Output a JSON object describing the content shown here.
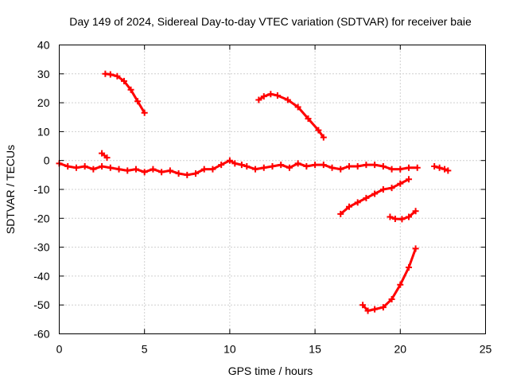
{
  "chart_data": {
    "type": "scatter",
    "title": "Day 149 of 2024, Sidereal Day-to-day VTEC variation (SDTVAR) for receiver baie",
    "xlabel": "GPS time / hours",
    "ylabel": "SDTVAR / TECUs",
    "xlim": [
      0,
      25
    ],
    "ylim": [
      -60,
      40
    ],
    "xticks": [
      0,
      5,
      10,
      15,
      20,
      25
    ],
    "yticks": [
      -60,
      -50,
      -40,
      -30,
      -20,
      -10,
      0,
      10,
      20,
      30,
      40
    ],
    "grid": true,
    "marker": "plus",
    "color": "#ff0000",
    "series": [
      {
        "name": "arc-main",
        "points": [
          [
            0.0,
            -1.0
          ],
          [
            0.5,
            -2.0
          ],
          [
            1.0,
            -2.5
          ],
          [
            1.5,
            -2.0
          ],
          [
            2.0,
            -3.0
          ],
          [
            2.5,
            -2.0
          ],
          [
            3.0,
            -2.5
          ],
          [
            3.5,
            -3.0
          ],
          [
            4.0,
            -3.5
          ],
          [
            4.5,
            -3.0
          ],
          [
            5.0,
            -4.0
          ],
          [
            5.5,
            -3.0
          ],
          [
            6.0,
            -4.0
          ],
          [
            6.5,
            -3.5
          ],
          [
            7.0,
            -4.5
          ],
          [
            7.5,
            -5.0
          ],
          [
            8.0,
            -4.5
          ],
          [
            8.5,
            -3.0
          ],
          [
            9.0,
            -3.0
          ],
          [
            9.5,
            -1.5
          ],
          [
            10.0,
            0.0
          ],
          [
            10.3,
            -1.0
          ],
          [
            10.7,
            -1.5
          ],
          [
            11.0,
            -2.0
          ],
          [
            11.5,
            -3.0
          ],
          [
            12.0,
            -2.5
          ],
          [
            12.5,
            -2.0
          ],
          [
            13.0,
            -1.5
          ],
          [
            13.5,
            -2.5
          ],
          [
            14.0,
            -1.0
          ],
          [
            14.5,
            -2.0
          ],
          [
            15.0,
            -1.5
          ],
          [
            15.5,
            -1.5
          ],
          [
            16.0,
            -2.5
          ],
          [
            16.5,
            -3.0
          ],
          [
            17.0,
            -2.0
          ],
          [
            17.5,
            -2.0
          ],
          [
            18.0,
            -1.5
          ],
          [
            18.5,
            -1.5
          ],
          [
            19.0,
            -2.0
          ],
          [
            19.5,
            -3.0
          ],
          [
            20.0,
            -3.0
          ],
          [
            20.5,
            -2.5
          ],
          [
            21.0,
            -2.5
          ]
        ]
      },
      {
        "name": "arc-1",
        "points": [
          [
            2.7,
            30.0
          ],
          [
            3.0,
            29.8
          ],
          [
            3.4,
            29.2
          ],
          [
            3.8,
            27.5
          ],
          [
            4.2,
            24.5
          ],
          [
            4.6,
            20.5
          ],
          [
            5.0,
            16.5
          ]
        ]
      },
      {
        "name": "arc-2",
        "points": [
          [
            11.7,
            21.0
          ],
          [
            12.0,
            22.2
          ],
          [
            12.4,
            23.0
          ],
          [
            12.8,
            22.5
          ],
          [
            13.4,
            21.0
          ],
          [
            14.0,
            18.5
          ],
          [
            14.6,
            14.5
          ],
          [
            15.2,
            10.5
          ],
          [
            15.5,
            8.0
          ]
        ]
      },
      {
        "name": "arc-3",
        "points": [
          [
            16.5,
            -18.5
          ],
          [
            17.0,
            -16.0
          ],
          [
            17.5,
            -14.5
          ],
          [
            18.0,
            -13.0
          ],
          [
            18.5,
            -11.5
          ],
          [
            19.0,
            -10.0
          ],
          [
            19.5,
            -9.5
          ],
          [
            20.0,
            -8.0
          ],
          [
            20.5,
            -6.5
          ]
        ]
      },
      {
        "name": "arc-4",
        "points": [
          [
            19.4,
            -19.5
          ],
          [
            19.7,
            -20.2
          ],
          [
            20.1,
            -20.3
          ],
          [
            20.5,
            -19.5
          ],
          [
            20.9,
            -17.5
          ]
        ]
      },
      {
        "name": "arc-5",
        "points": [
          [
            17.8,
            -50.0
          ],
          [
            18.1,
            -52.0
          ],
          [
            18.5,
            -51.5
          ],
          [
            19.0,
            -50.8
          ],
          [
            19.5,
            -48.0
          ],
          [
            20.0,
            -43.0
          ],
          [
            20.5,
            -37.0
          ],
          [
            20.9,
            -30.5
          ]
        ]
      },
      {
        "name": "arc-6",
        "points": [
          [
            22.0,
            -2.0
          ],
          [
            22.3,
            -2.5
          ],
          [
            22.6,
            -3.0
          ],
          [
            22.8,
            -3.5
          ]
        ]
      },
      {
        "name": "arc-7",
        "points": [
          [
            2.5,
            2.5
          ],
          [
            2.8,
            1.0
          ]
        ]
      }
    ]
  }
}
